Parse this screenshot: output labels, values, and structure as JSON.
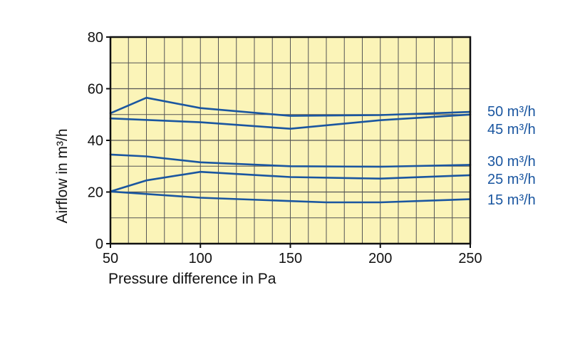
{
  "chart_data": {
    "type": "line",
    "title": "",
    "xlabel": "Pressure difference in Pa",
    "ylabel": "Airflow in m³/h",
    "xlim": [
      50,
      250
    ],
    "ylim": [
      0,
      80
    ],
    "x_ticks": [
      50,
      100,
      150,
      200,
      250
    ],
    "y_ticks": [
      0,
      20,
      40,
      60,
      80
    ],
    "grid": true,
    "legend": "right-of-plot, labels beside each line end",
    "colors": {
      "plot_background": "#fbf4b8",
      "grid": "#555555",
      "frame": "#111111",
      "series": "#1a56a0",
      "labels": "#1a56a0"
    },
    "series": [
      {
        "name": "50 m³/h",
        "x": [
          50,
          70,
          100,
          150,
          200,
          250
        ],
        "y": [
          50.5,
          56.5,
          52.5,
          49.5,
          49.8,
          51.0
        ]
      },
      {
        "name": "45 m³/h",
        "x": [
          50,
          100,
          150,
          200,
          250
        ],
        "y": [
          48.5,
          47.0,
          44.5,
          47.8,
          50.0
        ]
      },
      {
        "name": "30 m³/h",
        "x": [
          50,
          70,
          100,
          150,
          200,
          250
        ],
        "y": [
          34.5,
          33.8,
          31.5,
          30.0,
          29.8,
          30.5
        ]
      },
      {
        "name": "25 m³/h",
        "x": [
          50,
          70,
          100,
          150,
          200,
          250
        ],
        "y": [
          20.2,
          24.5,
          27.8,
          25.8,
          25.2,
          26.5
        ]
      },
      {
        "name": "15 m³/h",
        "x": [
          50,
          100,
          150,
          170,
          200,
          250
        ],
        "y": [
          20.2,
          17.8,
          16.5,
          16.0,
          16.0,
          17.2
        ]
      }
    ]
  }
}
